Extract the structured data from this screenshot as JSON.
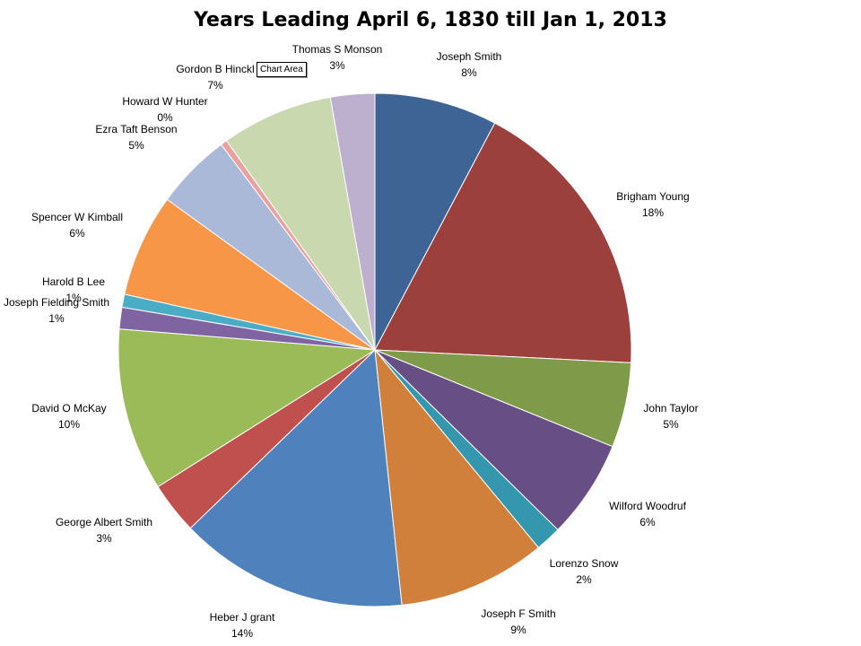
{
  "chart_data": {
    "type": "pie",
    "title": "Years Leading April 6, 1830 till Jan 1, 2013",
    "slices": [
      {
        "label": "Joseph Smith",
        "pct_label": "8%",
        "value": 14.2,
        "color": "#3E6496"
      },
      {
        "label": "Brigham Young",
        "pct_label": "18%",
        "value": 33.1,
        "color": "#9C403D"
      },
      {
        "label": "John Taylor",
        "pct_label": "5%",
        "value": 9.8,
        "color": "#7F9A48"
      },
      {
        "label": "Wilford Woodruf",
        "pct_label": "6%",
        "value": 11.4,
        "color": "#674F86"
      },
      {
        "label": "Lorenzo Snow",
        "pct_label": "2%",
        "value": 3.0,
        "color": "#3497AE"
      },
      {
        "label": "Joseph F Smith",
        "pct_label": "9%",
        "value": 17.1,
        "color": "#D0803A"
      },
      {
        "label": "Heber J grant",
        "pct_label": "14%",
        "value": 26.5,
        "color": "#4F81BD"
      },
      {
        "label": "George Albert Smith",
        "pct_label": "3%",
        "value": 6.0,
        "color": "#C0504D"
      },
      {
        "label": "David O McKay",
        "pct_label": "10%",
        "value": 18.8,
        "color": "#9BBB59"
      },
      {
        "label": "Joseph Fielding Smith",
        "pct_label": "1%",
        "value": 2.5,
        "color": "#8064A2"
      },
      {
        "label": "Harold B Lee",
        "pct_label": "1%",
        "value": 1.5,
        "color": "#4BACC6"
      },
      {
        "label": "Spencer W Kimball",
        "pct_label": "6%",
        "value": 11.9,
        "color": "#F79646"
      },
      {
        "label": "Ezra Taft Benson",
        "pct_label": "5%",
        "value": 8.8,
        "color": "#AAB9D8"
      },
      {
        "label": "Howard W Hunter",
        "pct_label": "0%",
        "value": 0.75,
        "color": "#E8A19F"
      },
      {
        "label": "Gordon B Hinckl",
        "pct_label": "7%",
        "value": 12.9,
        "color": "#C9D8AF"
      },
      {
        "label": "Thomas S Monson",
        "pct_label": "3%",
        "value": 5.1,
        "color": "#BDB0CF"
      }
    ]
  },
  "tooltip": {
    "text": "Chart Area"
  }
}
